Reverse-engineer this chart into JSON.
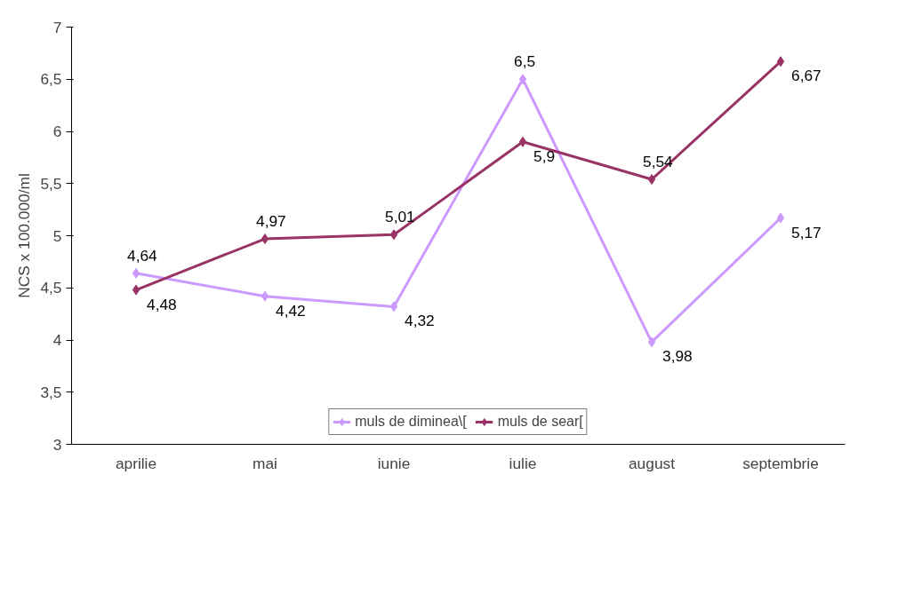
{
  "chart_data": {
    "type": "line",
    "ylabel": "NCS x 100.000/ml",
    "categories": [
      "aprilie",
      "mai",
      "iunie",
      "iulie",
      "august",
      "septembrie"
    ],
    "series": [
      {
        "name": "muls de diminea\\[",
        "color": "#cc99ff",
        "values": [
          4.64,
          4.42,
          4.32,
          6.5,
          3.98,
          5.17
        ],
        "value_labels": [
          "4,64",
          "4,42",
          "4,32",
          "6,5",
          "3,98",
          "5,17"
        ]
      },
      {
        "name": "muls de sear[",
        "color": "#993366",
        "values": [
          4.48,
          4.97,
          5.01,
          5.9,
          5.54,
          6.67
        ],
        "value_labels": [
          "4,48",
          "4,97",
          "5,01",
          "5,9",
          "5,54",
          "6,67"
        ]
      }
    ],
    "ylim": [
      3,
      7
    ],
    "yticks": [
      3,
      {
        "value": 3.5,
        "label": "3,5"
      },
      4,
      {
        "value": 4.5,
        "label": "4,5"
      },
      5,
      {
        "value": 5.5,
        "label": "5,5"
      },
      6,
      {
        "value": 6.5,
        "label": "6,5"
      },
      7
    ],
    "grid": false,
    "legend": "bottom",
    "marker": "diamond",
    "line_style": "solid"
  }
}
